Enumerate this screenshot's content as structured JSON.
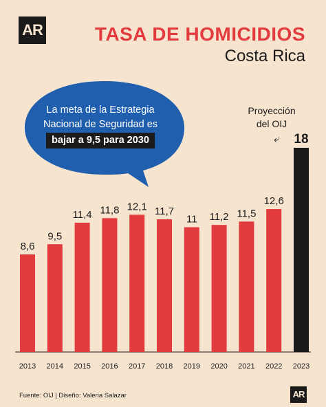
{
  "header": {
    "logo": "AR",
    "title": "TASA DE HOMICIDIOS",
    "subtitle": "Costa Rica"
  },
  "bubble": {
    "line1": "La meta de la Estrategia",
    "line2": "Nacional de Seguridad es",
    "highlight": "bajar a 9,5 para 2030"
  },
  "projection_note": {
    "line1": "Proyección",
    "line2": "del OIJ"
  },
  "footer": {
    "source": "Fuente: OIJ | Diseño: Valeria Salazar",
    "logo": "AR"
  },
  "colors": {
    "background": "#f7e4cf",
    "bar": "#e23b3e",
    "projection_bar": "#1b1b1b",
    "bubble": "#1f5fae",
    "text": "#1b1b1b"
  },
  "chart_data": {
    "type": "bar",
    "title": "TASA DE HOMICIDIOS",
    "subtitle": "Costa Rica",
    "categories": [
      "2013",
      "2014",
      "2015",
      "2016",
      "2017",
      "2018",
      "2019",
      "2020",
      "2021",
      "2022",
      "2023"
    ],
    "values": [
      8.6,
      9.5,
      11.4,
      11.8,
      12.1,
      11.7,
      11,
      11.2,
      11.5,
      12.6,
      18
    ],
    "value_labels": [
      "8,6",
      "9,5",
      "11,4",
      "11,8",
      "12,1",
      "11,7",
      "11",
      "11,2",
      "11,5",
      "12,6",
      "18"
    ],
    "highlighted_category": "2023",
    "ylim": [
      0,
      18
    ],
    "grid": false,
    "xlabel": "",
    "ylabel": ""
  }
}
